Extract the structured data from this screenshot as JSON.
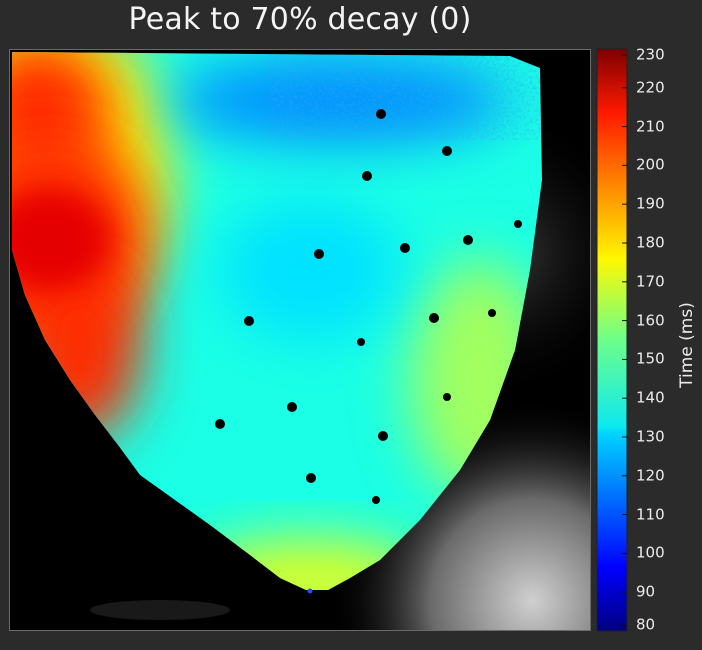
{
  "chart_data": {
    "type": "heatmap",
    "title": "Peak to 70% decay (0)",
    "colorbar": {
      "label": "Time (ms)",
      "min": 80,
      "max": 230,
      "ticks": [
        230,
        220,
        210,
        200,
        190,
        180,
        170,
        160,
        150,
        140,
        130,
        120,
        110,
        100,
        90,
        80
      ],
      "colormap": "jet"
    },
    "regions": [
      {
        "name": "left-upper edge",
        "value": 175
      },
      {
        "name": "left-mid hot region",
        "value": 215
      },
      {
        "name": "left-lower band",
        "value": 205
      },
      {
        "name": "central field",
        "value": 140
      },
      {
        "name": "upper-right edge",
        "value": 120
      },
      {
        "name": "right edge band",
        "value": 160
      },
      {
        "name": "apex",
        "value": 170
      }
    ]
  },
  "colors": {
    "background": "#2b2b2b",
    "map_background": "#000000",
    "markers": "#000000"
  }
}
